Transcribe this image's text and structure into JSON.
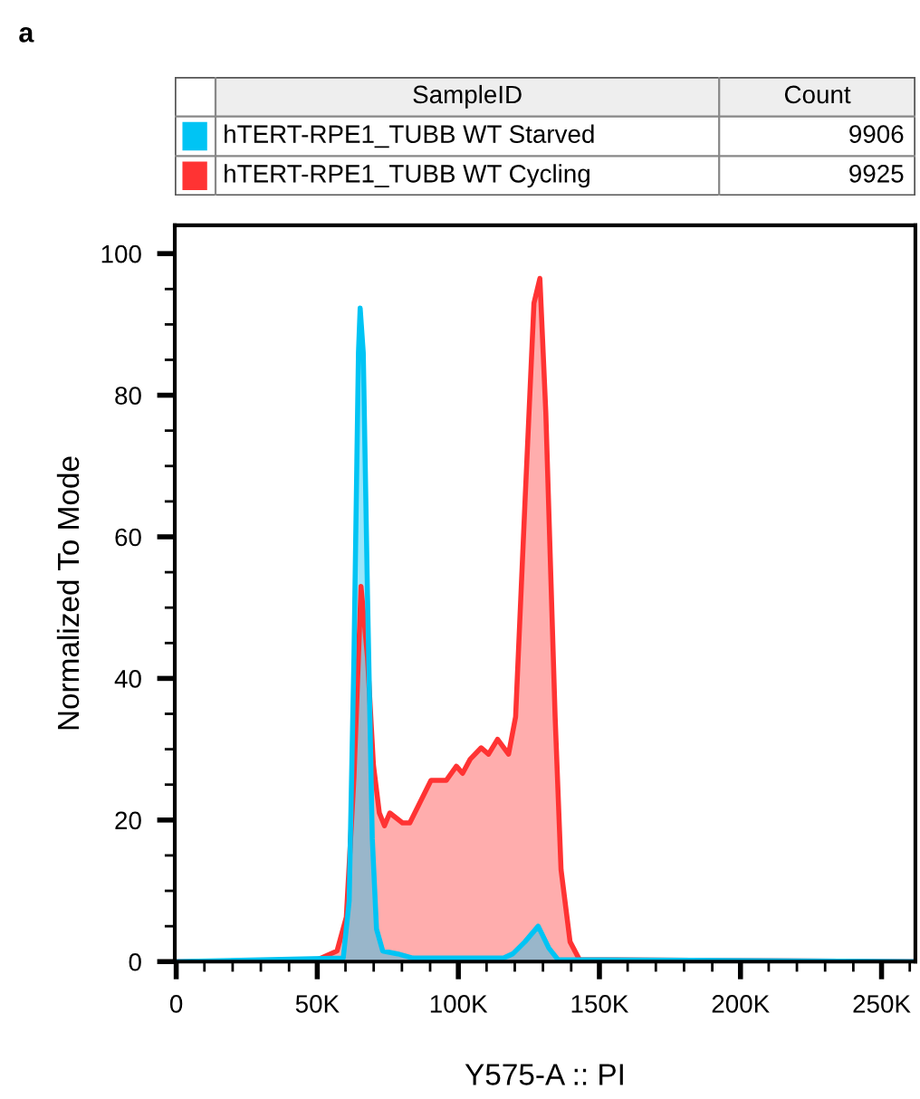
{
  "chart_data": {
    "type": "area",
    "xlabel": "Y575-A :: PI",
    "ylabel": "Normalized To Mode",
    "legend_title": "SampleID",
    "annotations": [
      "a",
      "Count",
      "9906",
      "9925"
    ],
    "xlim": [
      -500,
      262000
    ],
    "ylim": [
      0,
      104
    ],
    "xticks": [
      0,
      {
        "value": 10000,
        "label": null
      },
      {
        "value": 20000,
        "label": null
      },
      {
        "value": 30000,
        "label": null
      },
      {
        "value": 40000,
        "label": null
      },
      {
        "value": 50000,
        "label": "50K"
      },
      {
        "value": 60000,
        "label": null
      },
      {
        "value": 70000,
        "label": null
      },
      {
        "value": 80000,
        "label": null
      },
      {
        "value": 90000,
        "label": null
      },
      {
        "value": 100000,
        "label": "100K"
      },
      {
        "value": 110000,
        "label": null
      },
      {
        "value": 120000,
        "label": null
      },
      {
        "value": 130000,
        "label": null
      },
      {
        "value": 140000,
        "label": null
      },
      {
        "value": 150000,
        "label": "150K"
      },
      {
        "value": 160000,
        "label": null
      },
      {
        "value": 170000,
        "label": null
      },
      {
        "value": 180000,
        "label": null
      },
      {
        "value": 190000,
        "label": null
      },
      {
        "value": 200000,
        "label": "200K"
      },
      {
        "value": 210000,
        "label": null
      },
      {
        "value": 220000,
        "label": null
      },
      {
        "value": 230000,
        "label": null
      },
      {
        "value": 240000,
        "label": null
      },
      {
        "value": 250000,
        "label": "250K"
      },
      {
        "value": 260000,
        "label": null
      }
    ],
    "yticks": [
      0,
      {
        "value": 5,
        "label": null
      },
      {
        "value": 10,
        "label": null
      },
      {
        "value": 15,
        "label": null
      },
      20,
      {
        "value": 25,
        "label": null
      },
      {
        "value": 30,
        "label": null
      },
      {
        "value": 35,
        "label": null
      },
      40,
      {
        "value": 45,
        "label": null
      },
      {
        "value": 50,
        "label": null
      },
      {
        "value": 55,
        "label": null
      },
      60,
      {
        "value": 65,
        "label": null
      },
      {
        "value": 70,
        "label": null
      },
      {
        "value": 75,
        "label": null
      },
      80,
      {
        "value": 85,
        "label": null
      },
      {
        "value": 90,
        "label": null
      },
      {
        "value": 95,
        "label": null
      },
      100
    ],
    "legend": "top",
    "grid": false,
    "series": [
      {
        "name": "hTERT-RPE1_TUBB WT Cycling",
        "color": "#ff3333",
        "x": [
          0,
          48500,
          57000,
          60300,
          63000,
          64600,
          65500,
          67800,
          69900,
          72000,
          73800,
          75700,
          80200,
          82800,
          90300,
          95700,
          99300,
          101500,
          104200,
          108100,
          110700,
          113900,
          117800,
          120300,
          123600,
          126800,
          128900,
          131000,
          134300,
          136400,
          139600,
          142900,
          262000
        ],
        "values": [
          0,
          0,
          1.5,
          6.3,
          26,
          43,
          53,
          43,
          27.8,
          21,
          19.2,
          21,
          19.6,
          19.6,
          25.6,
          25.6,
          27.6,
          26.6,
          28.6,
          30.2,
          29.3,
          31.4,
          29.3,
          34.6,
          64.7,
          93,
          96.5,
          77.6,
          34.6,
          13,
          2.8,
          0.3,
          0
        ]
      },
      {
        "name": "hTERT-RPE1_TUBB WT Starved",
        "color": "#00c4f4",
        "x": [
          0,
          59200,
          61300,
          63000,
          64600,
          65200,
          66300,
          67800,
          69500,
          71000,
          73200,
          78500,
          83900,
          116000,
          119300,
          123600,
          128300,
          132100,
          135300,
          262000
        ],
        "values": [
          0,
          0.5,
          8.6,
          43,
          86,
          92.3,
          86,
          51.8,
          17.4,
          4.6,
          1.5,
          1.1,
          0.5,
          0.5,
          1.1,
          2.8,
          5,
          1.9,
          0.3,
          0
        ]
      }
    ]
  }
}
